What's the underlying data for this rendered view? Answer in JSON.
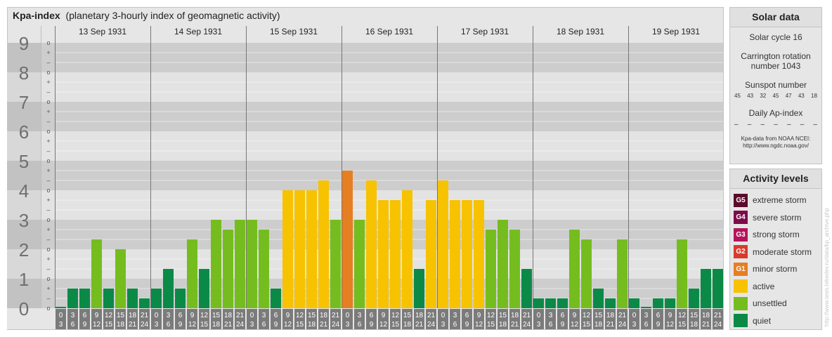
{
  "title": {
    "main": "Kpa-index",
    "sub": "(planetary 3-hourly index of geomagnetic activity)"
  },
  "chart_data": {
    "type": "bar",
    "ylim": [
      0,
      9
    ],
    "y_ticks": [
      "0",
      "1",
      "2",
      "3",
      "4",
      "5",
      "6",
      "7",
      "8",
      "9"
    ],
    "y_minor_labels": [
      "+",
      "o",
      "–"
    ],
    "days": [
      {
        "label": "13 Sep 1931",
        "values": [
          0.0,
          0.667,
          0.667,
          2.333,
          0.667,
          2.0,
          0.667,
          0.333
        ]
      },
      {
        "label": "14 Sep 1931",
        "values": [
          0.667,
          1.333,
          0.667,
          2.333,
          1.333,
          3.0,
          2.667,
          3.0
        ]
      },
      {
        "label": "15 Sep 1931",
        "values": [
          3.0,
          2.667,
          0.667,
          4.0,
          4.0,
          4.0,
          4.333,
          3.0
        ]
      },
      {
        "label": "16 Sep 1931",
        "values": [
          4.667,
          3.0,
          4.333,
          3.667,
          3.667,
          4.0,
          1.333,
          3.667
        ]
      },
      {
        "label": "17 Sep 1931",
        "values": [
          4.333,
          3.667,
          3.667,
          3.667,
          2.667,
          3.0,
          2.667,
          1.333
        ]
      },
      {
        "label": "18 Sep 1931",
        "values": [
          0.333,
          0.333,
          0.333,
          2.667,
          2.333,
          0.667,
          0.333,
          2.333
        ]
      },
      {
        "label": "19 Sep 1931",
        "values": [
          0.333,
          0.0,
          0.333,
          0.333,
          2.333,
          0.667,
          1.333,
          1.333
        ]
      }
    ],
    "interval_labels": [
      [
        "0",
        "3"
      ],
      [
        "3",
        "6"
      ],
      [
        "6",
        "9"
      ],
      [
        "9",
        "12"
      ],
      [
        "12",
        "15"
      ],
      [
        "15",
        "18"
      ],
      [
        "18",
        "21"
      ],
      [
        "21",
        "24"
      ]
    ],
    "colors": {
      "quiet": "#0b8a47",
      "unsettled": "#75bd1f",
      "active": "#f7c200",
      "minor": "#e67e22"
    }
  },
  "solar": {
    "heading": "Solar data",
    "cycle": "Solar cycle 16",
    "carrington_line1": "Carrington rotation",
    "carrington_line2": "number 1043",
    "sunspot_heading": "Sunspot number",
    "sunspot_values": [
      "45",
      "43",
      "32",
      "45",
      "47",
      "43",
      "18"
    ],
    "ap_heading": "Daily Ap-index",
    "ap_values": [
      "–",
      "–",
      "–",
      "–",
      "–",
      "–",
      "–"
    ],
    "source_line1": "Kpa-data from NOAA NCEI:",
    "source_line2": "http://www.ngdc.noaa.gov/"
  },
  "levels": {
    "heading": "Activity levels",
    "items": [
      {
        "code": "G5",
        "label": "extreme storm",
        "color": "#5a0b2c"
      },
      {
        "code": "G4",
        "label": "severe storm",
        "color": "#7d0a4a"
      },
      {
        "code": "G3",
        "label": "strong storm",
        "color": "#b5145c"
      },
      {
        "code": "G2",
        "label": "moderate storm",
        "color": "#d63b2c"
      },
      {
        "code": "G1",
        "label": "minor storm",
        "color": "#e67e22"
      },
      {
        "code": "",
        "label": "active",
        "color": "#f7c200"
      },
      {
        "code": "",
        "label": "unsettled",
        "color": "#75bd1f"
      },
      {
        "code": "",
        "label": "quiet",
        "color": "#0b8a47"
      }
    ]
  },
  "watermark": "http://www.tesis.lebedev.ru/data/kp_archive.php"
}
